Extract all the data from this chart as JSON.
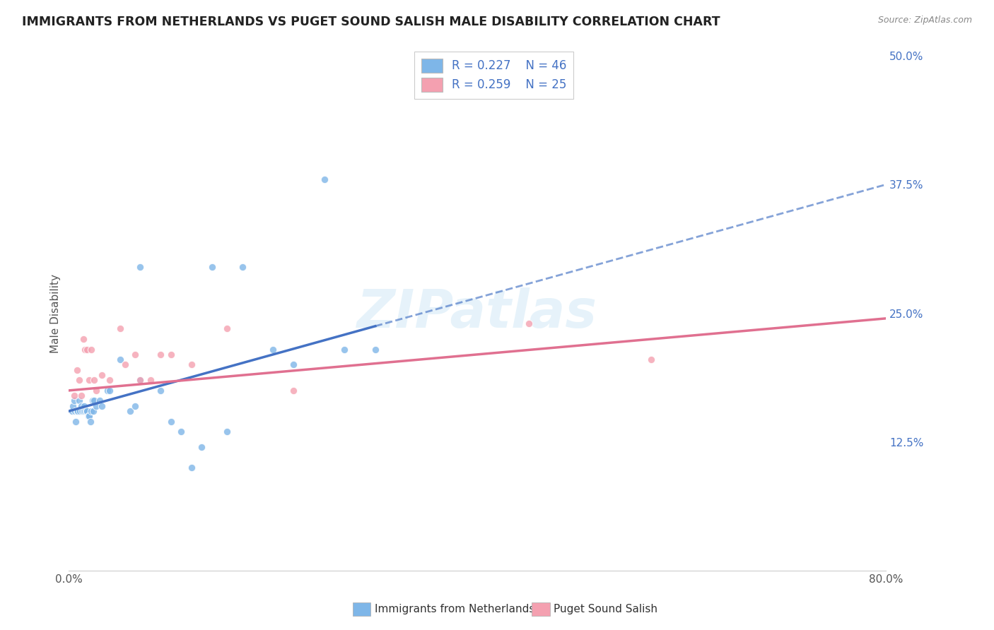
{
  "title": "IMMIGRANTS FROM NETHERLANDS VS PUGET SOUND SALISH MALE DISABILITY CORRELATION CHART",
  "source": "Source: ZipAtlas.com",
  "ylabel": "Male Disability",
  "xlim": [
    0.0,
    0.8
  ],
  "ylim": [
    0.0,
    0.5
  ],
  "ytick_labels_right": [
    "50.0%",
    "37.5%",
    "25.0%",
    "12.5%",
    ""
  ],
  "ytick_vals_right": [
    0.5,
    0.375,
    0.25,
    0.125,
    0.0
  ],
  "grid_color": "#cccccc",
  "background_color": "#ffffff",
  "series1_color": "#7EB6E8",
  "series2_color": "#F4A0B0",
  "series1_label": "Immigrants from Netherlands",
  "series2_label": "Puget Sound Salish",
  "series1_R": "0.227",
  "series1_N": "46",
  "series2_R": "0.259",
  "series2_N": "25",
  "series1_line_color": "#4472C4",
  "series2_line_color": "#E07090",
  "series1_x": [
    0.003,
    0.004,
    0.005,
    0.006,
    0.007,
    0.008,
    0.009,
    0.01,
    0.011,
    0.012,
    0.013,
    0.014,
    0.015,
    0.016,
    0.017,
    0.018,
    0.019,
    0.02,
    0.021,
    0.022,
    0.023,
    0.024,
    0.025,
    0.027,
    0.03,
    0.032,
    0.038,
    0.04,
    0.05,
    0.06,
    0.065,
    0.07,
    0.09,
    0.1,
    0.11,
    0.12,
    0.13,
    0.14,
    0.155,
    0.17,
    0.2,
    0.22,
    0.25,
    0.27,
    0.3,
    0.07
  ],
  "series1_y": [
    0.155,
    0.16,
    0.165,
    0.155,
    0.145,
    0.155,
    0.155,
    0.165,
    0.155,
    0.16,
    0.155,
    0.155,
    0.16,
    0.155,
    0.155,
    0.155,
    0.15,
    0.15,
    0.145,
    0.155,
    0.165,
    0.155,
    0.165,
    0.16,
    0.165,
    0.16,
    0.175,
    0.175,
    0.205,
    0.155,
    0.16,
    0.295,
    0.175,
    0.145,
    0.135,
    0.1,
    0.12,
    0.295,
    0.135,
    0.295,
    0.215,
    0.2,
    0.38,
    0.215,
    0.215,
    0.185
  ],
  "series2_x": [
    0.005,
    0.008,
    0.01,
    0.012,
    0.014,
    0.016,
    0.018,
    0.02,
    0.022,
    0.025,
    0.027,
    0.032,
    0.04,
    0.05,
    0.055,
    0.065,
    0.07,
    0.08,
    0.09,
    0.1,
    0.12,
    0.155,
    0.22,
    0.45,
    0.57
  ],
  "series2_y": [
    0.17,
    0.195,
    0.185,
    0.17,
    0.225,
    0.215,
    0.215,
    0.185,
    0.215,
    0.185,
    0.175,
    0.19,
    0.185,
    0.235,
    0.2,
    0.21,
    0.185,
    0.185,
    0.21,
    0.21,
    0.2,
    0.235,
    0.175,
    0.24,
    0.205
  ],
  "watermark": "ZIPatlas",
  "legend_text_color": "#4472C4",
  "trend1_x0": 0.0,
  "trend1_y0": 0.155,
  "trend1_x1": 0.8,
  "trend1_y1": 0.375,
  "trend1_solid_end": 0.3,
  "trend2_x0": 0.0,
  "trend2_y0": 0.175,
  "trend2_x1": 0.8,
  "trend2_y1": 0.245
}
